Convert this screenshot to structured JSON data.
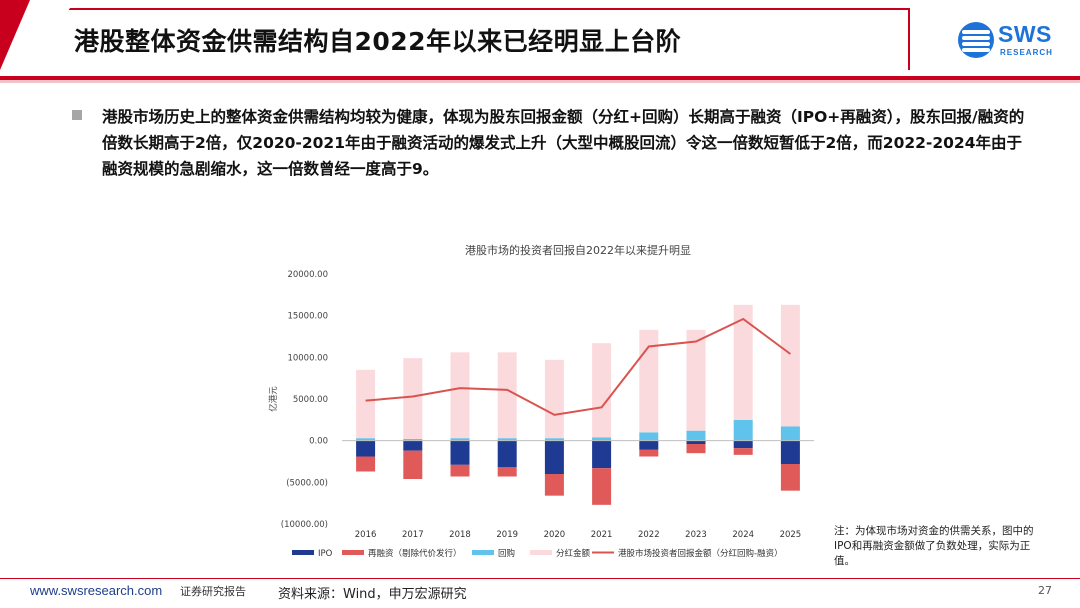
{
  "header": {
    "title": "港股整体资金供需结构自2022年以来已经明显上台阶",
    "logo_text": "SWS",
    "logo_sub": "RESEARCH"
  },
  "bullet": {
    "text": "港股市场历史上的整体资金供需结构均较为健康，体现为股东回报金额（分红+回购）长期高于融资（IPO+再融资），股东回报/融资的倍数长期高于2倍，仅2020-2021年由于融资活动的爆发式上升（大型中概股回流）令这一倍数短暂低于2倍，而2022-2024年由于融资规模的急剧缩水，这一倍数曾经一度高于9。"
  },
  "note": {
    "text": "注：为体现市场对资金的供需关系，图中的IPO和再融资金额做了负数处理，实际为正值。"
  },
  "footer": {
    "url": "www.swsresearch.com",
    "report_type": "证券研究报告",
    "source": "资料来源：Wind，申万宏源研究",
    "page": "27"
  },
  "colors": {
    "ipo": "#1f3a93",
    "refinancing": "#e05a5a",
    "buyback": "#5fc3ec",
    "dividend": "#fadadd",
    "line": "#d9534f",
    "brand_red": "#c8001e",
    "brand_blue": "#1e73d8"
  },
  "chart_data": {
    "type": "bar",
    "title": "港股市场的投资者回报自2022年以来提升明显",
    "ylabel": "亿港元",
    "xlabel": "",
    "ylim": [
      -10000,
      20000
    ],
    "ytick_step": 5000,
    "ytick_labels": [
      "20000.00",
      "15000.00",
      "10000.00",
      "5000.00",
      "0.00",
      "(5000.00)",
      "(10000.00)"
    ],
    "categories": [
      "2016",
      "2017",
      "2018",
      "2019",
      "2020",
      "2021",
      "2022",
      "2023",
      "2024",
      "2025"
    ],
    "series": [
      {
        "name": "IPO",
        "type": "bar",
        "values": [
          -1900,
          -1200,
          -2900,
          -3200,
          -4000,
          -3300,
          -1100,
          -400,
          -900,
          -2800
        ]
      },
      {
        "name": "再融资（剔除代价发行）",
        "type": "bar",
        "values": [
          -1800,
          -3400,
          -1400,
          -1100,
          -2600,
          -4400,
          -800,
          -1100,
          -800,
          -3200
        ]
      },
      {
        "name": "回购",
        "type": "bar",
        "values": [
          300,
          200,
          300,
          300,
          300,
          400,
          1000,
          1200,
          2500,
          1700
        ]
      },
      {
        "name": "分红金额",
        "type": "bar",
        "values": [
          8200,
          9700,
          10300,
          10300,
          9400,
          11300,
          12300,
          12100,
          13800,
          14600
        ]
      },
      {
        "name": "港股市场投资者回报金额（分红回购-融资）",
        "type": "line",
        "values": [
          4800,
          5300,
          6300,
          6100,
          3100,
          4000,
          11300,
          11900,
          14600,
          10400
        ]
      }
    ],
    "legend_position": "bottom",
    "grid": false
  }
}
